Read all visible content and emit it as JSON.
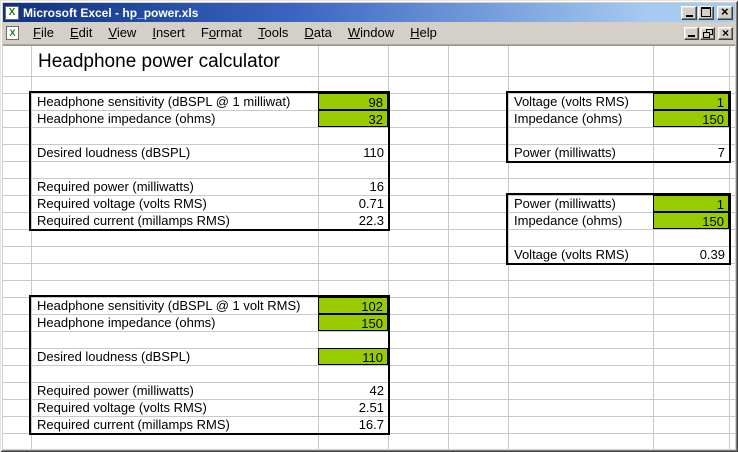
{
  "window": {
    "title": "Microsoft Excel - hp_power.xls",
    "title_bar_controls": [
      "Minimize",
      "Maximize",
      "Close"
    ],
    "menu_bar_controls": [
      "Minimize Window",
      "Restore Window",
      "Close Window"
    ],
    "colors": {
      "title_gradient_left": "#0f317e",
      "title_gradient_right": "#a6caf0",
      "chrome_gray": "#d4d0c8",
      "input_cell_green": "#99cc00",
      "gridline": "#c9c9c9"
    }
  },
  "menu": {
    "items": [
      {
        "label": "File",
        "accel": 0
      },
      {
        "label": "Edit",
        "accel": 0
      },
      {
        "label": "View",
        "accel": 0
      },
      {
        "label": "Insert",
        "accel": 0
      },
      {
        "label": "Format",
        "accel": 1
      },
      {
        "label": "Tools",
        "accel": 0
      },
      {
        "label": "Data",
        "accel": 0
      },
      {
        "label": "Window",
        "accel": 0
      },
      {
        "label": "Help",
        "accel": 0
      }
    ]
  },
  "sheet": {
    "title": "Headphone power calculator",
    "tables": [
      {
        "id": "sensitivity-per-milliwatt-calculator",
        "rows": [
          {
            "label": "Headphone sensitivity (dBSPL @ 1 milliwat)",
            "value": "98",
            "green": true
          },
          {
            "label": "Headphone impedance (ohms)",
            "value": "32",
            "green": true
          },
          {
            "label": "",
            "value": "",
            "green": false
          },
          {
            "label": "Desired loudness (dBSPL)",
            "value": "110",
            "green": false
          },
          {
            "label": "",
            "value": "",
            "green": false
          },
          {
            "label": "Required power (milliwatts)",
            "value": "16",
            "green": false
          },
          {
            "label": "Required voltage (volts RMS)",
            "value": "0.71",
            "green": false
          },
          {
            "label": "Required current (millamps RMS)",
            "value": "22.3",
            "green": false
          }
        ]
      },
      {
        "id": "voltage-impedance-to-power",
        "rows": [
          {
            "label": "Voltage (volts RMS)",
            "value": "1",
            "green": true
          },
          {
            "label": "Impedance (ohms)",
            "value": "150",
            "green": true
          },
          {
            "label": "",
            "value": "",
            "green": false
          },
          {
            "label": "Power (milliwatts)",
            "value": "7",
            "green": false
          }
        ]
      },
      {
        "id": "power-impedance-to-voltage",
        "rows": [
          {
            "label": "Power (milliwatts)",
            "value": "1",
            "green": true
          },
          {
            "label": "Impedance (ohms)",
            "value": "150",
            "green": true
          },
          {
            "label": "",
            "value": "",
            "green": false
          },
          {
            "label": "Voltage (volts RMS)",
            "value": "0.39",
            "green": false
          }
        ]
      },
      {
        "id": "sensitivity-per-volt-calculator",
        "rows": [
          {
            "label": "Headphone sensitivity (dBSPL @ 1 volt RMS)",
            "value": "102",
            "green": true
          },
          {
            "label": "Headphone impedance (ohms)",
            "value": "150",
            "green": true
          },
          {
            "label": "",
            "value": "",
            "green": false
          },
          {
            "label": "Desired loudness (dBSPL)",
            "value": "110",
            "green": true
          },
          {
            "label": "",
            "value": "",
            "green": false
          },
          {
            "label": "Required power (milliwatts)",
            "value": "42",
            "green": false
          },
          {
            "label": "Required voltage (volts RMS)",
            "value": "2.51",
            "green": false
          },
          {
            "label": "Required current (millamps RMS)",
            "value": "16.7",
            "green": false
          }
        ]
      }
    ]
  }
}
